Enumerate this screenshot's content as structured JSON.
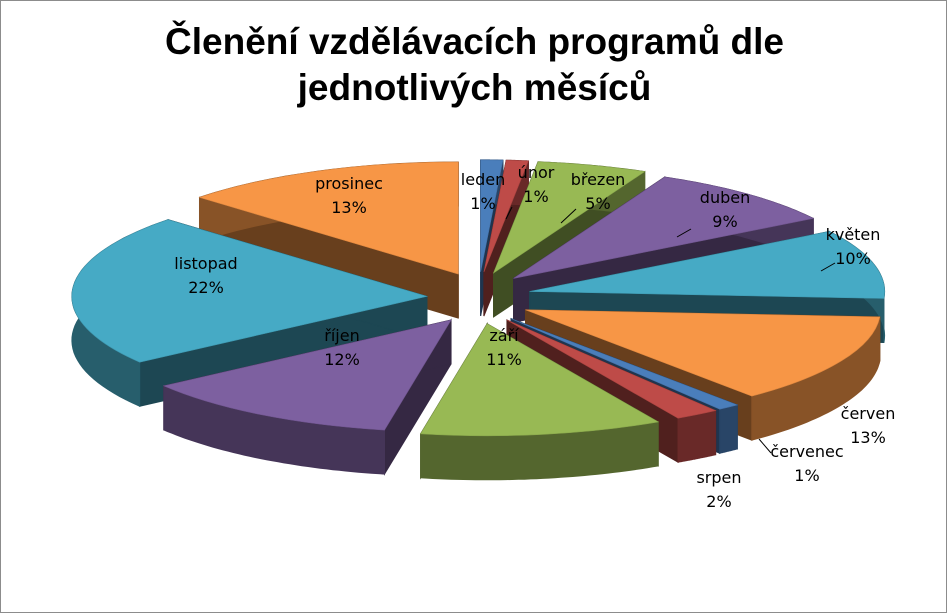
{
  "chart_data": {
    "type": "pie",
    "style": "3d-exploded",
    "title": "Členění vzdělávacích programů dle jednotlivých měsíců",
    "categories": [
      "leden",
      "únor",
      "březen",
      "duben",
      "květen",
      "červen",
      "červenec",
      "srpen",
      "září",
      "říjen",
      "listopad",
      "prosinec"
    ],
    "values": [
      1,
      1,
      5,
      9,
      10,
      13,
      1,
      2,
      11,
      12,
      22,
      13
    ],
    "value_labels": [
      "1%",
      "1%",
      "5%",
      "9%",
      "10%",
      "13%",
      "1%",
      "2%",
      "11%",
      "12%",
      "22%",
      "13%"
    ],
    "colors": [
      "#4a7ebb",
      "#be4b48",
      "#98b954",
      "#7d60a0",
      "#46aac5",
      "#f79646",
      "#4a7ebb",
      "#be4b48",
      "#98b954",
      "#7d60a0",
      "#46aac5",
      "#f79646"
    ],
    "legend": "none",
    "data_labels": "outside with leader lines"
  }
}
